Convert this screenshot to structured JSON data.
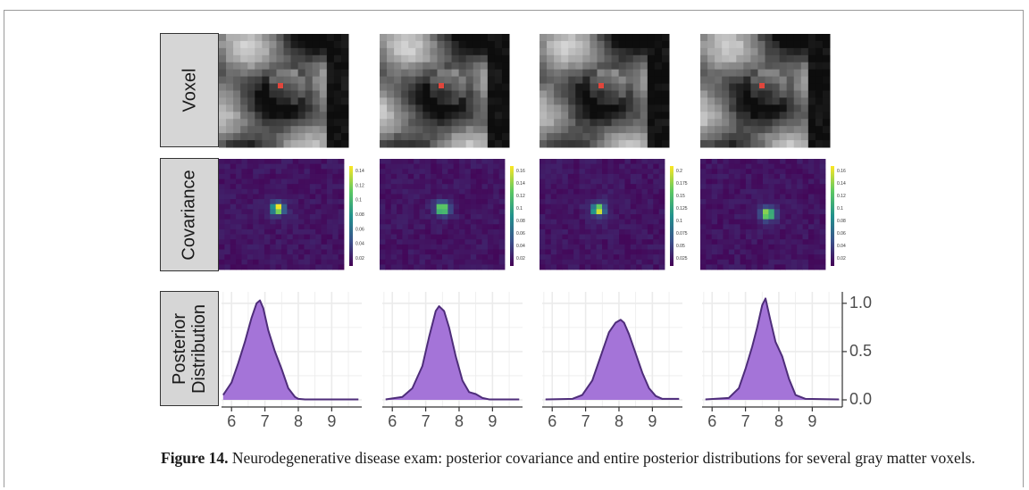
{
  "row_labels": {
    "voxel": "Voxel",
    "covariance": "Covariance",
    "posterior_line1": "Posterior",
    "posterior_line2": "Distribution"
  },
  "caption": {
    "label": "Figure 14.",
    "text": " Neurodegenerative disease exam: posterior covariance and entire posterior distributions for several gray matter voxels."
  },
  "colorbars": [
    {
      "ticks": [
        "0.14",
        "0.12",
        "0.1",
        "0.08",
        "0.06",
        "0.04",
        "0.02"
      ]
    },
    {
      "ticks": [
        "0.16",
        "0.14",
        "0.12",
        "0.1",
        "0.08",
        "0.06",
        "0.04",
        "0.02"
      ]
    },
    {
      "ticks": [
        "0.2",
        "0.175",
        "0.15",
        "0.125",
        "0.1",
        "0.075",
        "0.05",
        "0.025"
      ]
    },
    {
      "ticks": [
        "0.16",
        "0.14",
        "0.12",
        "0.1",
        "0.08",
        "0.06",
        "0.04",
        "0.02"
      ]
    }
  ],
  "colors": {
    "voxel_marker": "#e0463c",
    "density_fill": "#a474d8",
    "density_line": "#4e2d7a",
    "viridis_low": "#440154",
    "viridis_high": "#fde725"
  },
  "chart_data": {
    "type": "area",
    "xlim": [
      5.7,
      9.9
    ],
    "ylim": [
      0,
      1.1
    ],
    "x_ticks": [
      "6",
      "7",
      "8",
      "9"
    ],
    "y_ticks": [
      "0.0",
      "0.5",
      "1.0"
    ],
    "series": [
      {
        "x": [
          5.75,
          6.0,
          6.2,
          6.4,
          6.6,
          6.75,
          6.85,
          6.95,
          7.1,
          7.3,
          7.5,
          7.7,
          7.9,
          8.0,
          8.2,
          9.8
        ],
        "y": [
          0.05,
          0.18,
          0.38,
          0.6,
          0.85,
          1.0,
          1.03,
          0.95,
          0.72,
          0.5,
          0.32,
          0.12,
          0.03,
          0.01,
          0.005,
          0.005
        ]
      },
      {
        "x": [
          5.8,
          6.3,
          6.6,
          6.9,
          7.1,
          7.3,
          7.4,
          7.55,
          7.7,
          7.9,
          8.1,
          8.3,
          8.5,
          8.7,
          8.9,
          9.8
        ],
        "y": [
          0.005,
          0.03,
          0.12,
          0.35,
          0.65,
          0.92,
          0.97,
          0.92,
          0.75,
          0.45,
          0.2,
          0.08,
          0.06,
          0.02,
          0.005,
          0.005
        ]
      },
      {
        "x": [
          5.8,
          6.6,
          6.9,
          7.2,
          7.5,
          7.7,
          7.9,
          8.05,
          8.15,
          8.3,
          8.5,
          8.7,
          8.9,
          9.1,
          9.3,
          9.8
        ],
        "y": [
          0.005,
          0.01,
          0.05,
          0.2,
          0.5,
          0.7,
          0.8,
          0.83,
          0.8,
          0.68,
          0.48,
          0.28,
          0.12,
          0.04,
          0.01,
          0.01
        ]
      },
      {
        "x": [
          5.8,
          6.5,
          6.8,
          7.0,
          7.2,
          7.35,
          7.5,
          7.6,
          7.75,
          7.9,
          8.1,
          8.3,
          8.5,
          8.8,
          9.8
        ],
        "y": [
          0.005,
          0.02,
          0.12,
          0.32,
          0.55,
          0.75,
          0.98,
          1.05,
          0.82,
          0.6,
          0.45,
          0.22,
          0.05,
          0.01,
          0.005
        ]
      }
    ]
  }
}
